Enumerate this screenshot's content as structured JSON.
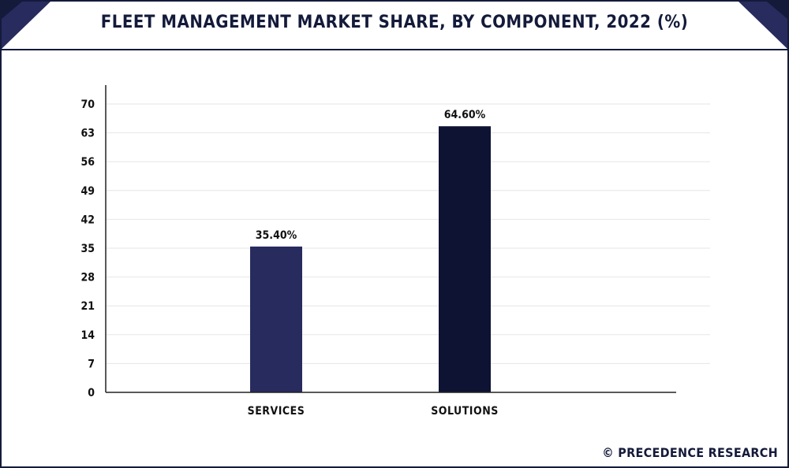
{
  "header": {
    "title": "FLEET MANAGEMENT MARKET SHARE, BY COMPONENT, 2022 (%)"
  },
  "credit": {
    "text": "© PRECEDENCE RESEARCH"
  },
  "colors": {
    "navy_dark": "#141a3a",
    "bar_services": "#272b5e",
    "bar_solutions": "#0e1333",
    "header_accent": "#272b5e",
    "grid": "#e6e6e6",
    "axis": "#222222"
  },
  "chart_data": {
    "type": "bar",
    "title": "FLEET MANAGEMENT MARKET SHARE, BY COMPONENT, 2022 (%)",
    "xlabel": "",
    "ylabel": "",
    "categories": [
      "SERVICES",
      "SOLUTIONS"
    ],
    "values": [
      35.4,
      64.6
    ],
    "data_labels": [
      "35.40%",
      "64.60%"
    ],
    "bar_colors": [
      "#272b5e",
      "#0e1333"
    ],
    "ylim": [
      0,
      70
    ],
    "yticks": [
      0,
      7,
      14,
      21,
      28,
      35,
      42,
      49,
      56,
      63,
      70
    ],
    "grid": true,
    "legend": "none"
  }
}
